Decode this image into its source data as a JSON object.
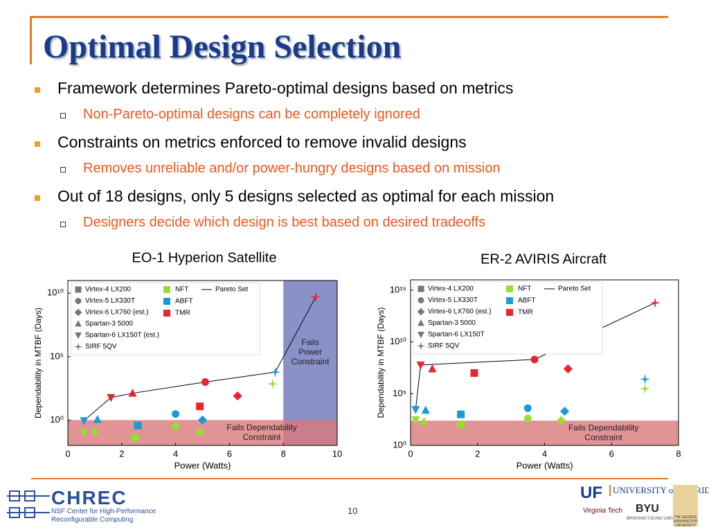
{
  "title": "Optimal Design Selection",
  "bullets": [
    {
      "text": "Framework determines Pareto-optimal designs based on metrics",
      "sub": "Non-Pareto-optimal designs can be completely ignored"
    },
    {
      "text": "Constraints on metrics enforced to remove invalid designs",
      "sub": "Removes unreliable and/or power-hungry designs based on mission"
    },
    {
      "text": "Out of 18 designs, only 5 designs selected as optimal for each mission",
      "sub": "Designers decide which design is best based on desired tradeoffs"
    }
  ],
  "chart_data": [
    {
      "type": "scatter",
      "title": "EO-1 Hyperion Satellite",
      "x_label": "Power (Watts)",
      "y_label": "Dependability in MTBF (Days)",
      "yscale": "log",
      "xlim": [
        0,
        10
      ],
      "xticks": [
        0,
        2,
        4,
        6,
        8,
        10
      ],
      "ylim": [
        0.01,
        100000000000
      ],
      "yticks": [
        {
          "value": 1,
          "label": "10⁰"
        },
        {
          "value": 100000,
          "label": "10⁵"
        },
        {
          "value": 10000000000,
          "label": "10¹⁰"
        }
      ],
      "legend": "upper left",
      "series": [
        {
          "name": "Virtex-4 LX200",
          "marker": "square",
          "x": [
            2.5,
            2.6,
            4.9
          ],
          "values": [
            0.04,
            0.37,
            12
          ],
          "colors": [
            "#99dd33",
            "#1a9ad6",
            "#e8262e"
          ]
        },
        {
          "name": "Virtex-5 LX330T",
          "marker": "circle",
          "x": [
            4.0,
            4.0,
            5.1
          ],
          "values": [
            0.33,
            3,
            1000
          ],
          "colors": [
            "#99dd33",
            "#1a9ad6",
            "#e8262e"
          ]
        },
        {
          "name": "Virtex-6 LX760 (est.)",
          "marker": "diamond",
          "x": [
            4.9,
            5.0,
            6.3
          ],
          "values": [
            0.11,
            1,
            80
          ],
          "colors": [
            "#99dd33",
            "#1a9ad6",
            "#e8262e"
          ]
        },
        {
          "name": "Spartan-3 5000",
          "marker": "triangle-up",
          "x": [
            1.0,
            1.1,
            2.4
          ],
          "values": [
            0.14,
            1.1,
            130
          ],
          "colors": [
            "#99dd33",
            "#1a9ad6",
            "#e8262e"
          ]
        },
        {
          "name": "Spartan-6 LX150T (est.)",
          "marker": "triangle-down",
          "x": [
            0.6,
            0.6,
            1.6
          ],
          "values": [
            0.1,
            0.9,
            60
          ],
          "colors": [
            "#99dd33",
            "#1a9ad6",
            "#e8262e"
          ]
        },
        {
          "name": "SIRF 5QV",
          "marker": "star",
          "x": [
            7.6,
            7.7,
            9.2
          ],
          "values": [
            700,
            6000,
            5000000000
          ],
          "colors": [
            "#99dd33",
            "#1a9ad6",
            "#e8262e"
          ]
        }
      ],
      "techniques": [
        {
          "name": "NFT",
          "color": "#99dd33"
        },
        {
          "name": "ABFT",
          "color": "#1a9ad6"
        },
        {
          "name": "TMR",
          "color": "#e8262e"
        }
      ],
      "pareto": {
        "name": "Pareto Set",
        "color": "#000000",
        "x": [
          0.6,
          1.6,
          2.4,
          5.1,
          7.7,
          9.2
        ],
        "values": [
          0.9,
          60,
          130,
          1000,
          6000,
          5000000000
        ]
      },
      "regions": [
        {
          "label": [
            "Fails",
            "Power",
            "Constraint"
          ],
          "xmin": 8,
          "color": "#8a90c8"
        },
        {
          "label": [
            "Fails Dependability",
            "Constraint"
          ],
          "ymax": 1,
          "color": "#d9797c"
        }
      ]
    },
    {
      "type": "scatter",
      "title": "ER-2 AVIRIS Aircraft",
      "x_label": "Power (Watts)",
      "y_label": "Dependability in MTBF (Days)",
      "yscale": "log",
      "xlim": [
        0,
        8
      ],
      "xticks": [
        0,
        2,
        4,
        6,
        8
      ],
      "ylim": [
        1,
        10000000000000000
      ],
      "yticks": [
        {
          "value": 1,
          "label": "10⁰"
        },
        {
          "value": 100000,
          "label": "10⁵"
        },
        {
          "value": 10000000000,
          "label": "10¹⁰"
        },
        {
          "value": 1000000000000000,
          "label": "10¹⁵"
        }
      ],
      "legend": "upper left",
      "series": [
        {
          "name": "Virtex-4 LX200",
          "marker": "square",
          "x": [
            1.5,
            1.5,
            1.9
          ],
          "values": [
            100,
            1000,
            10000000
          ],
          "colors": [
            "#99dd33",
            "#1a9ad6",
            "#e8262e"
          ]
        },
        {
          "name": "Virtex-5 LX330T",
          "marker": "circle",
          "x": [
            3.5,
            3.5,
            3.7
          ],
          "values": [
            400,
            4000,
            200000000
          ],
          "colors": [
            "#99dd33",
            "#1a9ad6",
            "#e8262e"
          ]
        },
        {
          "name": "Virtex-6 LX760 (est.)",
          "marker": "diamond",
          "x": [
            4.5,
            4.6,
            4.7
          ],
          "values": [
            250,
            2000,
            25000000
          ],
          "colors": [
            "#99dd33",
            "#1a9ad6",
            "#e8262e"
          ]
        },
        {
          "name": "Spartan-3 5000",
          "marker": "triangle-up",
          "x": [
            0.4,
            0.45,
            0.65
          ],
          "values": [
            200,
            2500,
            25000000
          ],
          "colors": [
            "#99dd33",
            "#1a9ad6",
            "#e8262e"
          ]
        },
        {
          "name": "Spartan-6 LX150T",
          "marker": "triangle-down",
          "x": [
            0.15,
            0.15,
            0.3
          ],
          "values": [
            300,
            3000,
            60000000
          ],
          "colors": [
            "#99dd33",
            "#1a9ad6",
            "#e8262e"
          ]
        },
        {
          "name": "SIRF 5QV",
          "marker": "star",
          "x": [
            7.0,
            7.0,
            7.3
          ],
          "values": [
            300000,
            2500000,
            60000000000000
          ],
          "colors": [
            "#99dd33",
            "#1a9ad6",
            "#e8262e"
          ]
        }
      ],
      "techniques": [
        {
          "name": "NFT",
          "color": "#99dd33"
        },
        {
          "name": "ABFT",
          "color": "#1a9ad6"
        },
        {
          "name": "TMR",
          "color": "#e8262e"
        }
      ],
      "pareto": {
        "name": "Pareto Set",
        "color": "#000000",
        "x": [
          0.15,
          0.3,
          3.7,
          7.3
        ],
        "values": [
          3000,
          60000000,
          200000000,
          60000000000000
        ]
      },
      "regions": [
        {
          "label": [
            "Fails Dependability",
            "Constraint"
          ],
          "ymax": 250,
          "color": "#d9797c"
        }
      ]
    }
  ],
  "footer": {
    "page": "10",
    "logo": "CHREC",
    "logo_sub": [
      "NSF Center for High-Performance",
      "Reconfigurable Computing"
    ],
    "partners": [
      "UF",
      "UNIVERSITY of FLORIDA",
      "Virginia Tech",
      "BYU",
      "BRIGHAM YOUNG UNIVERSITY",
      "THE GEORGE WASHINGTON UNIVERSITY"
    ]
  }
}
